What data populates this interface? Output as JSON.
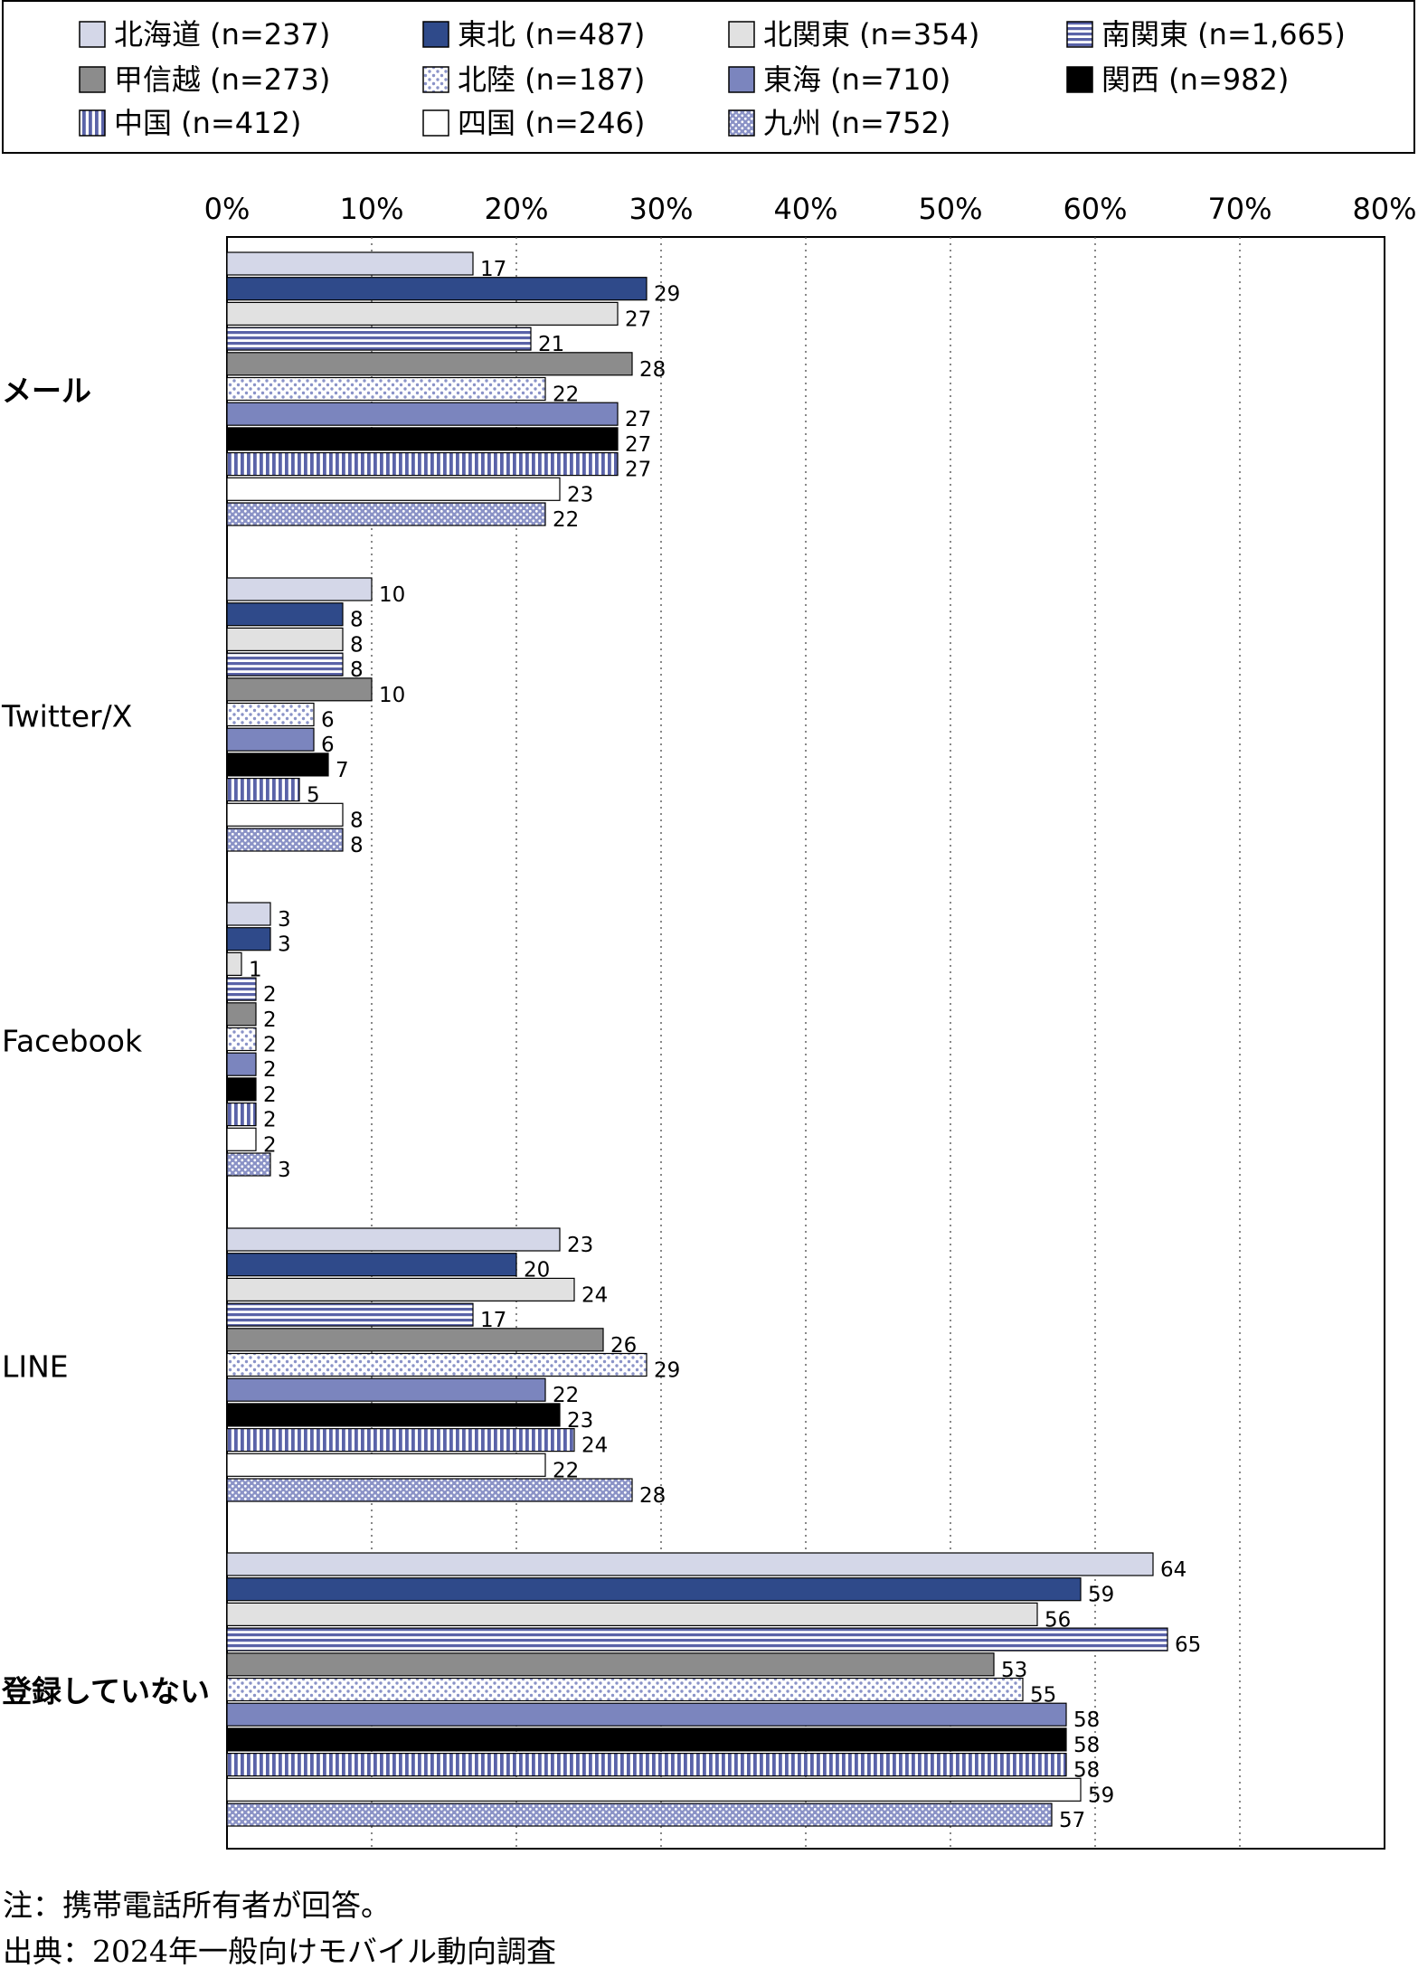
{
  "chart_data": {
    "type": "bar",
    "orientation": "horizontal",
    "categories": [
      "メール",
      "Twitter/X",
      "Facebook",
      "LINE",
      "登録していない"
    ],
    "xlim": [
      0,
      80
    ],
    "xticks": [
      "0%",
      "10%",
      "20%",
      "30%",
      "40%",
      "50%",
      "60%",
      "70%",
      "80%"
    ],
    "grid": "vertical-dotted",
    "legend_position": "top",
    "series": [
      {
        "name": "北海道 (n=237)",
        "values": [
          17,
          10,
          3,
          23,
          64
        ],
        "fill": "#d4d7e8",
        "pattern": "solid"
      },
      {
        "name": "東北 (n=487)",
        "values": [
          29,
          8,
          3,
          20,
          59
        ],
        "fill": "#2f4a8a",
        "pattern": "solid"
      },
      {
        "name": "北関東 (n=354)",
        "values": [
          27,
          8,
          1,
          24,
          56
        ],
        "fill": "#e1e1e1",
        "pattern": "solid"
      },
      {
        "name": "南関東 (n=1,665)",
        "values": [
          21,
          8,
          2,
          17,
          65
        ],
        "fill": "#6e76b4",
        "pattern": "hstripes"
      },
      {
        "name": "甲信越 (n=273)",
        "values": [
          28,
          10,
          2,
          26,
          53
        ],
        "fill": "#8c8c8c",
        "pattern": "solid"
      },
      {
        "name": "北陸 (n=187)",
        "values": [
          22,
          6,
          2,
          29,
          55
        ],
        "fill": "#ffffff",
        "pattern": "dots-light"
      },
      {
        "name": "東海 (n=710)",
        "values": [
          27,
          6,
          2,
          22,
          58
        ],
        "fill": "#7b85be",
        "pattern": "solid"
      },
      {
        "name": "関西 (n=982)",
        "values": [
          27,
          7,
          2,
          23,
          58
        ],
        "fill": "#000000",
        "pattern": "solid"
      },
      {
        "name": "中国 (n=412)",
        "values": [
          27,
          5,
          2,
          24,
          58
        ],
        "fill": "#6e76b4",
        "pattern": "vstripes"
      },
      {
        "name": "四国 (n=246)",
        "values": [
          23,
          8,
          2,
          22,
          59
        ],
        "fill": "#ffffff",
        "pattern": "solid"
      },
      {
        "name": "九州 (n=752)",
        "values": [
          22,
          8,
          3,
          28,
          57
        ],
        "fill": "#8990c4",
        "pattern": "dots-dense"
      }
    ]
  },
  "notes": {
    "note": "注：携帯電話所有者が回答。",
    "source": "出典：2024年一般向けモバイル動向調査"
  }
}
